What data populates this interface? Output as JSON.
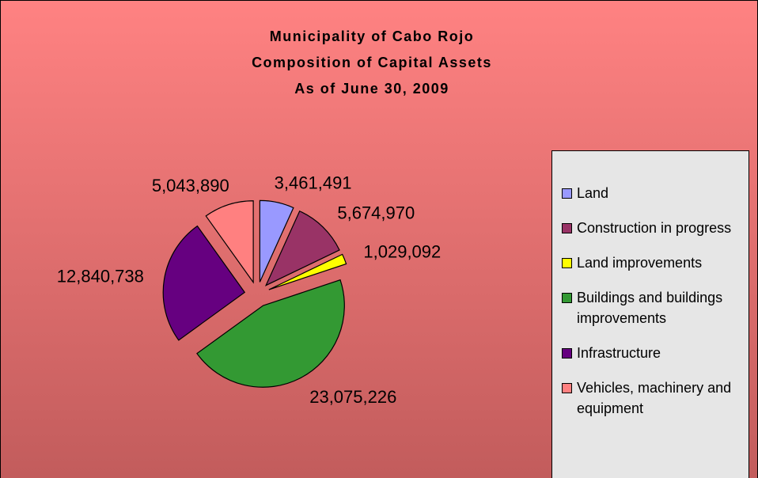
{
  "chart_data": {
    "type": "pie",
    "title": [
      "Municipality of Cabo Rojo",
      "Composition of Capital Assets",
      "As of June 30, 2009"
    ],
    "categories": [
      "Land",
      "Construction in progress",
      "Land improvements",
      "Buildings and buildings improvements",
      "Infrastructure",
      "Vehicles, machinery and equipment"
    ],
    "values": [
      3461491,
      5674970,
      1029092,
      23075226,
      12840738,
      5043890
    ],
    "value_labels": [
      "3,461,491",
      "5,674,970",
      "1,029,092",
      "23,075,226",
      "12,840,738",
      "5,043,890"
    ],
    "colors": [
      "#9999ff",
      "#993366",
      "#ffff00",
      "#339933",
      "#660080",
      "#ff8080"
    ],
    "legend": "right"
  }
}
